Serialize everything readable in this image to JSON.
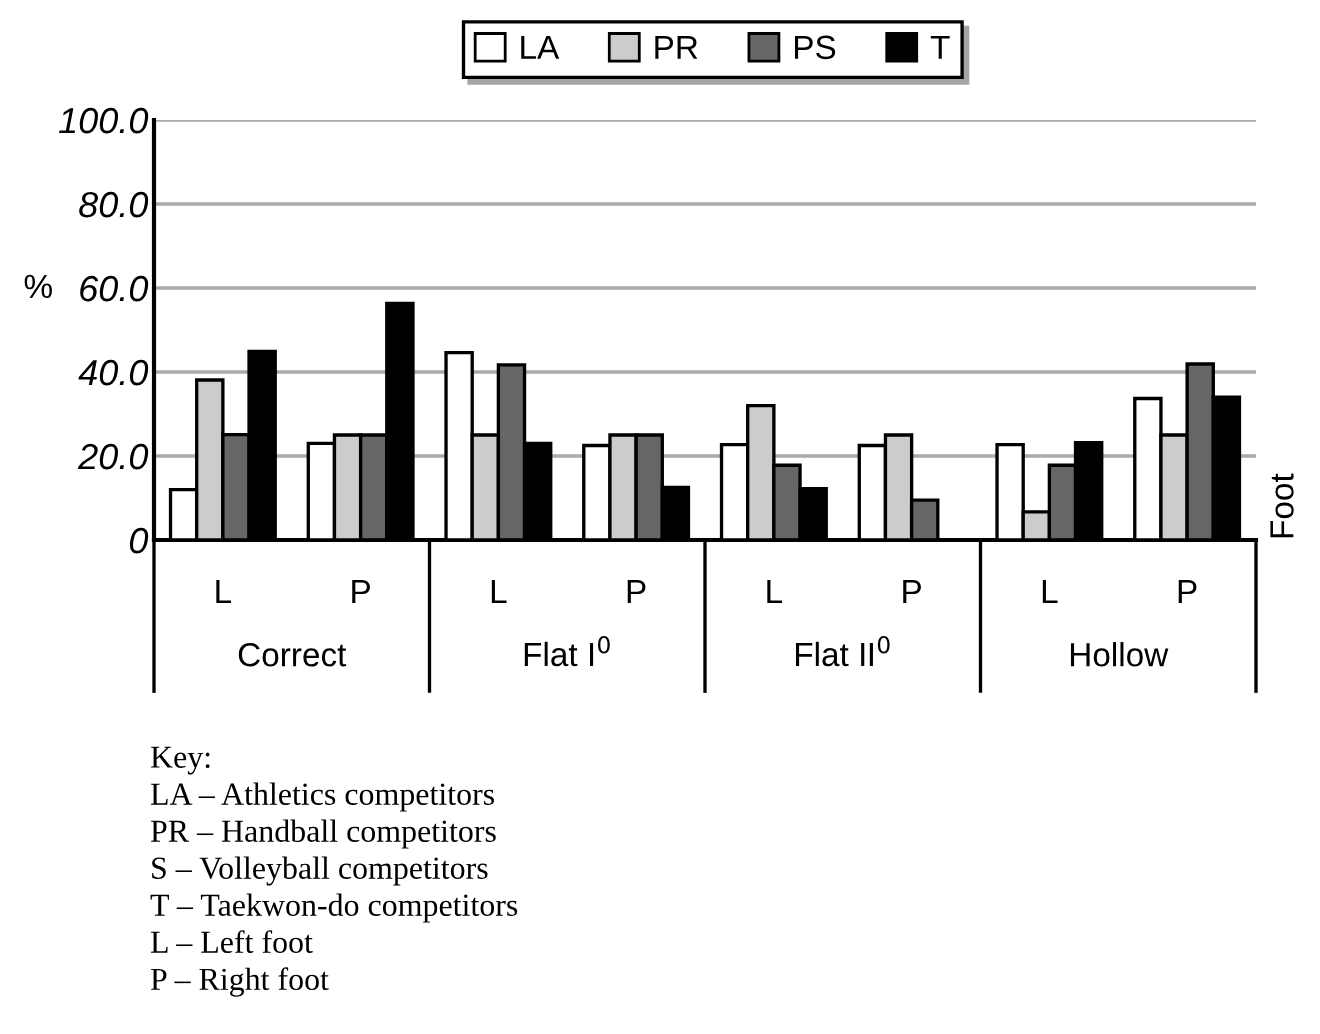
{
  "chart_data": {
    "type": "bar",
    "ylabel": "%",
    "categories": [
      "L",
      "P",
      "L",
      "P",
      "L",
      "P",
      "L",
      "P"
    ],
    "series": [
      {
        "name": "LA",
        "color": "#ffffff",
        "values": [
          12,
          23,
          44.6,
          22.5,
          22.7,
          22.5,
          22.7,
          33.7
        ]
      },
      {
        "name": "PR",
        "color": "#cccccc",
        "values": [
          38.1,
          25,
          25,
          25,
          32,
          25,
          6.7,
          25
        ]
      },
      {
        "name": "PS",
        "color": "#666666",
        "values": [
          25.1,
          25,
          41.7,
          25,
          17.8,
          9.5,
          17.8,
          41.9
        ]
      },
      {
        "name": "T",
        "color": "#000000",
        "values": [
          44.9,
          56.3,
          23,
          12.5,
          12.2,
          0,
          23.2,
          34
        ]
      }
    ],
    "ylim": [
      0,
      100
    ],
    "yticks": [
      {
        "value": 0,
        "label": "0"
      },
      {
        "value": 20,
        "label": "20.0"
      },
      {
        "value": 40,
        "label": "40.0"
      },
      {
        "value": 60,
        "label": "60.0"
      },
      {
        "value": 80,
        "label": "80.0"
      },
      {
        "value": 100,
        "label": "100.0"
      }
    ],
    "grid": "y",
    "legend": "top",
    "annotations": [
      "Correct",
      "Flat I$^{0}$",
      "Flat II$^{0}$",
      "Hollow",
      "Foot",
      "Key:",
      "LA – Athletics competitors",
      "PR – Handball competitors",
      "S – Volleyball competitors",
      "T – Taekwon-do competitors",
      "L – Left foot",
      "P – Right foot"
    ]
  }
}
